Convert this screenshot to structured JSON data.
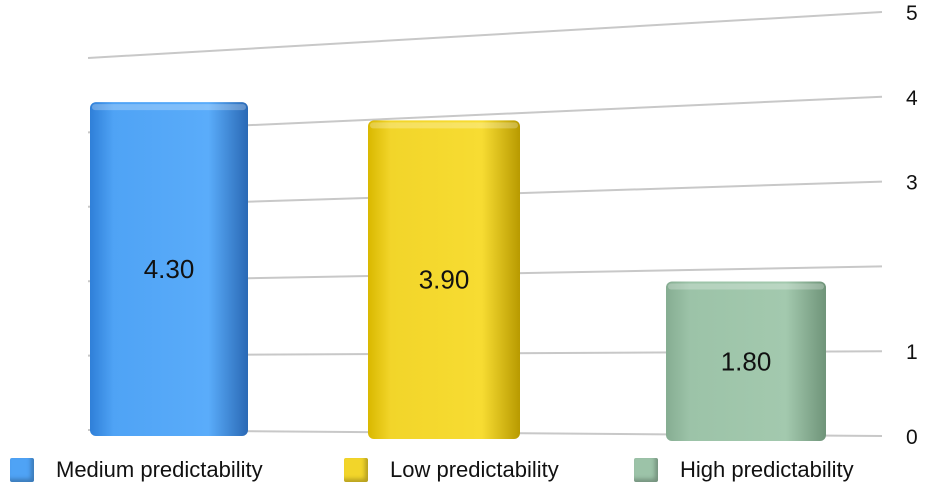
{
  "chart_data": {
    "type": "bar",
    "title": "",
    "xlabel": "",
    "ylabel": "",
    "ylim": [
      0,
      5
    ],
    "yticks": [
      "0",
      "1",
      "3",
      "4",
      "5"
    ],
    "grid": true,
    "legend_position": "bottom",
    "categories": [
      "Medium predictability",
      "Low predictability",
      "High predictability"
    ],
    "values": [
      4.3,
      3.9,
      1.8
    ],
    "value_labels": [
      "4.30",
      "3.90",
      "1.80"
    ],
    "colors": [
      "#4FA3F5",
      "#F2D52A",
      "#9CC3A8"
    ]
  }
}
